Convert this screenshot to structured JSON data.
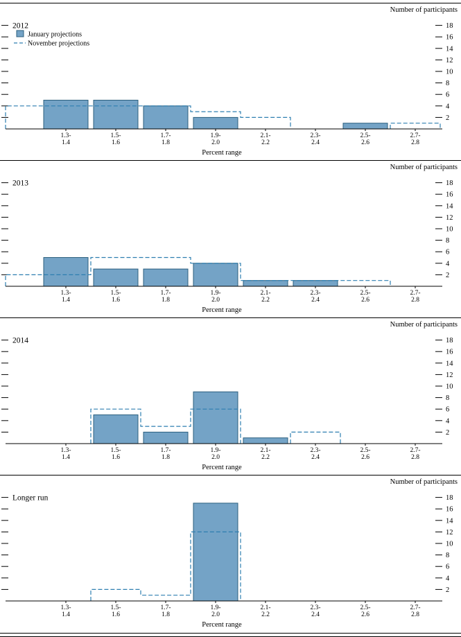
{
  "figure": {
    "right_header_label": "Number of participants",
    "x_axis_title": "Percent range"
  },
  "colors": {
    "bar_fill": "#74A3C6",
    "bar_stroke": "#2B5F7E",
    "dashed_line": "#2D7EB0",
    "axis": "#000000"
  },
  "legend": {
    "january_label": "January projections",
    "november_label": "November projections"
  },
  "chart_data": [
    {
      "type": "bar",
      "title": "2012",
      "ylabel": "Number of participants",
      "xlabel": "Percent range",
      "categories": [
        [
          "1.3-",
          "1.4"
        ],
        [
          "1.5-",
          "1.6"
        ],
        [
          "1.7-",
          "1.8"
        ],
        [
          "1.9-",
          "2.0"
        ],
        [
          "2.1-",
          "2.2"
        ],
        [
          "2.3-",
          "2.4"
        ],
        [
          "2.5-",
          "2.6"
        ],
        [
          "2.7-",
          "2.8"
        ]
      ],
      "yticks": [
        2,
        4,
        6,
        8,
        10,
        12,
        14,
        16,
        18
      ],
      "ylim": [
        0,
        19
      ],
      "legend": true,
      "series": [
        {
          "name": "January projections",
          "style": "bar",
          "values": [
            5,
            5,
            4,
            2,
            0,
            0,
            1,
            0
          ]
        },
        {
          "name": "November projections",
          "style": "dashed-step",
          "values": [
            4,
            4,
            4,
            3,
            2,
            0,
            0,
            1
          ],
          "left_edge_value": 4
        }
      ]
    },
    {
      "type": "bar",
      "title": "2013",
      "ylabel": "Number of participants",
      "xlabel": "Percent range",
      "categories": [
        [
          "1.3-",
          "1.4"
        ],
        [
          "1.5-",
          "1.6"
        ],
        [
          "1.7-",
          "1.8"
        ],
        [
          "1.9-",
          "2.0"
        ],
        [
          "2.1-",
          "2.2"
        ],
        [
          "2.3-",
          "2.4"
        ],
        [
          "2.5-",
          "2.6"
        ],
        [
          "2.7-",
          "2.8"
        ]
      ],
      "yticks": [
        2,
        4,
        6,
        8,
        10,
        12,
        14,
        16,
        18
      ],
      "ylim": [
        0,
        19
      ],
      "legend": false,
      "series": [
        {
          "name": "January projections",
          "style": "bar",
          "values": [
            5,
            3,
            3,
            4,
            1,
            1,
            0,
            0
          ]
        },
        {
          "name": "November projections",
          "style": "dashed-step",
          "values": [
            2,
            5,
            5,
            4,
            1,
            1,
            1,
            0
          ],
          "left_edge_value": 2
        }
      ]
    },
    {
      "type": "bar",
      "title": "2014",
      "ylabel": "Number of participants",
      "xlabel": "Percent range",
      "categories": [
        [
          "1.3-",
          "1.4"
        ],
        [
          "1.5-",
          "1.6"
        ],
        [
          "1.7-",
          "1.8"
        ],
        [
          "1.9-",
          "2.0"
        ],
        [
          "2.1-",
          "2.2"
        ],
        [
          "2.3-",
          "2.4"
        ],
        [
          "2.5-",
          "2.6"
        ],
        [
          "2.7-",
          "2.8"
        ]
      ],
      "yticks": [
        2,
        4,
        6,
        8,
        10,
        12,
        14,
        16,
        18
      ],
      "ylim": [
        0,
        19
      ],
      "legend": false,
      "series": [
        {
          "name": "January projections",
          "style": "bar",
          "values": [
            0,
            5,
            2,
            9,
            1,
            0,
            0,
            0
          ]
        },
        {
          "name": "November projections",
          "style": "dashed-step",
          "values": [
            0,
            6,
            3,
            6,
            0,
            2,
            0,
            0
          ],
          "left_edge_value": null
        }
      ]
    },
    {
      "type": "bar",
      "title": "Longer run",
      "ylabel": "Number of participants",
      "xlabel": "Percent range",
      "categories": [
        [
          "1.3-",
          "1.4"
        ],
        [
          "1.5-",
          "1.6"
        ],
        [
          "1.7-",
          "1.8"
        ],
        [
          "1.9-",
          "2.0"
        ],
        [
          "2.1-",
          "2.2"
        ],
        [
          "2.3-",
          "2.4"
        ],
        [
          "2.5-",
          "2.6"
        ],
        [
          "2.7-",
          "2.8"
        ]
      ],
      "yticks": [
        2,
        4,
        6,
        8,
        10,
        12,
        14,
        16,
        18
      ],
      "ylim": [
        0,
        19
      ],
      "legend": false,
      "series": [
        {
          "name": "January projections",
          "style": "bar",
          "values": [
            0,
            0,
            0,
            17,
            0,
            0,
            0,
            0
          ]
        },
        {
          "name": "November projections",
          "style": "dashed-step",
          "values": [
            0,
            2,
            1,
            12,
            0,
            0,
            0,
            0
          ],
          "left_edge_value": null
        }
      ]
    }
  ]
}
